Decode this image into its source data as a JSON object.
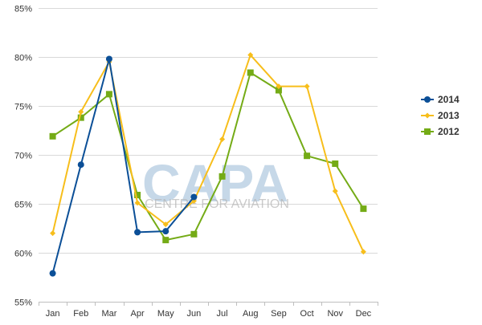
{
  "chart_data": {
    "type": "line",
    "title": "",
    "xlabel": "",
    "ylabel": "",
    "categories": [
      "Jan",
      "Feb",
      "Mar",
      "Apr",
      "May",
      "Jun",
      "Jul",
      "Aug",
      "Sep",
      "Oct",
      "Nov",
      "Dec"
    ],
    "ylim": [
      55,
      85
    ],
    "y_ticks": [
      55,
      60,
      65,
      70,
      75,
      80,
      85
    ],
    "y_tick_suffix": "%",
    "grid": "horizontal",
    "legend_position": "right",
    "series": [
      {
        "name": "2014",
        "color": "#0b4f97",
        "marker": "circle",
        "values": [
          57.9,
          69.0,
          79.8,
          62.1,
          62.2,
          65.7,
          null,
          null,
          null,
          null,
          null,
          null
        ]
      },
      {
        "name": "2013",
        "color": "#f7be1b",
        "marker": "diamond",
        "values": [
          62.0,
          74.4,
          79.5,
          65.1,
          62.9,
          65.3,
          71.6,
          80.2,
          77.0,
          77.0,
          66.3,
          60.1
        ]
      },
      {
        "name": "2012",
        "color": "#74ab16",
        "marker": "square",
        "values": [
          71.9,
          73.8,
          76.2,
          65.9,
          61.3,
          61.9,
          67.8,
          78.4,
          76.6,
          69.9,
          69.1,
          64.5
        ]
      }
    ]
  },
  "watermark": {
    "main": "CAPA",
    "sub": "CENTRE FOR AVIATION"
  }
}
